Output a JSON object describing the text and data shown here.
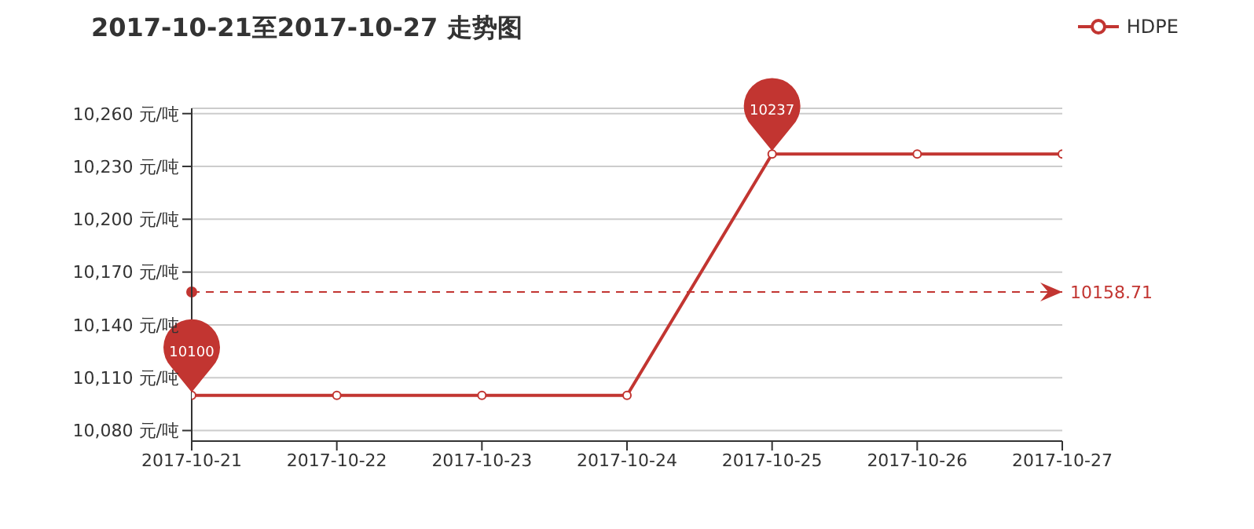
{
  "chart_data": {
    "type": "line",
    "title": "2017-10-21至2017-10-27 走势图",
    "categories": [
      "2017-10-21",
      "2017-10-22",
      "2017-10-23",
      "2017-10-24",
      "2017-10-25",
      "2017-10-26",
      "2017-10-27"
    ],
    "series": [
      {
        "name": "HDPE",
        "color": "#c23531",
        "values": [
          10100,
          10100,
          10100,
          10100,
          10237,
          10237,
          10237
        ]
      }
    ],
    "ylim": [
      10074,
      10263
    ],
    "yticks": [
      {
        "value": 10080,
        "label": "10,080 元/吨"
      },
      {
        "value": 10110,
        "label": "10,110 元/吨"
      },
      {
        "value": 10140,
        "label": "10,140 元/吨"
      },
      {
        "value": 10170,
        "label": "10,170 元/吨"
      },
      {
        "value": 10200,
        "label": "10,200 元/吨"
      },
      {
        "value": 10230,
        "label": "10,230 元/吨"
      },
      {
        "value": 10260,
        "label": "10,260 元/吨"
      }
    ],
    "ref_lines": [
      {
        "axis": "y",
        "value": 10158.71,
        "label": "10158.71",
        "color": "#c23531",
        "line_style": "dashed"
      }
    ],
    "annotations": [
      {
        "text": "10100",
        "x": "2017-10-21",
        "y": 10100
      },
      {
        "text": "10237",
        "x": "2017-10-25",
        "y": 10237
      }
    ],
    "grid": "y",
    "legend": "top right",
    "marker": "circle",
    "line_style": "solid"
  }
}
